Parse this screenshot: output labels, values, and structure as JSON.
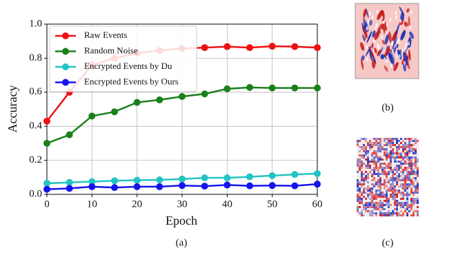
{
  "chart_data": {
    "type": "line",
    "x": [
      0,
      5,
      10,
      15,
      20,
      25,
      30,
      35,
      40,
      45,
      50,
      55,
      60
    ],
    "series": [
      {
        "name": "Raw Events",
        "color": "#ee1111",
        "values": [
          0.43,
          0.6,
          0.76,
          0.8,
          0.83,
          0.845,
          0.857,
          0.862,
          0.868,
          0.862,
          0.87,
          0.868,
          0.862
        ]
      },
      {
        "name": "Random Noise",
        "color": "#1a801a",
        "values": [
          0.3,
          0.35,
          0.46,
          0.485,
          0.54,
          0.555,
          0.575,
          0.59,
          0.62,
          0.628,
          0.625,
          0.625,
          0.625
        ]
      },
      {
        "name": "Encrypted Events by Du",
        "color": "#22c4c4",
        "values": [
          0.065,
          0.07,
          0.075,
          0.08,
          0.083,
          0.085,
          0.09,
          0.097,
          0.097,
          0.103,
          0.11,
          0.117,
          0.122
        ]
      },
      {
        "name": "Encrypted Events by Ours",
        "color": "#1414ee",
        "values": [
          0.03,
          0.035,
          0.045,
          0.04,
          0.045,
          0.045,
          0.052,
          0.048,
          0.055,
          0.05,
          0.052,
          0.05,
          0.06
        ]
      }
    ],
    "x_label": "Epoch",
    "y_label": "Accuracy",
    "xlim": [
      0,
      60
    ],
    "ylim": [
      0,
      1
    ],
    "xticks": [
      0,
      10,
      20,
      30,
      40,
      50,
      60
    ],
    "yticks": [
      {
        "value": 0,
        "label": "0.0"
      },
      0.2,
      0.4,
      0.6,
      0.8,
      {
        "value": 1,
        "label": "1.0"
      }
    ],
    "grid": true,
    "legend": "upper left"
  },
  "captions": [
    "(a)",
    "(b)",
    "(c)"
  ]
}
